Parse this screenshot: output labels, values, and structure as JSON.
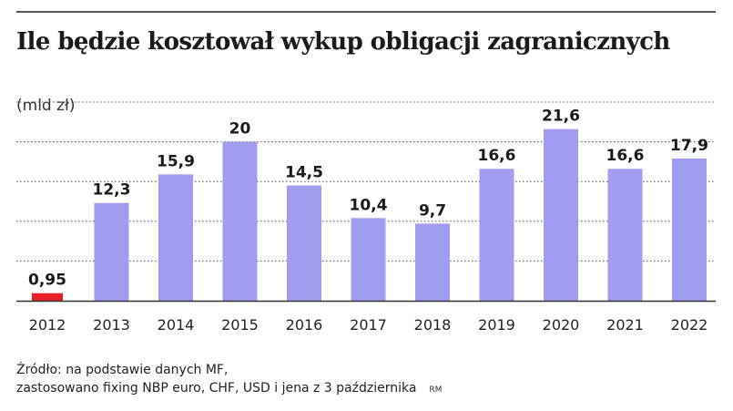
{
  "header": {
    "title": "Ile będzie kosztował wykup obligacji zagranicznych",
    "unit": "(mld zł)"
  },
  "chart_data": {
    "type": "bar",
    "title": "Ile będzie kosztował wykup obligacji zagranicznych",
    "ylabel": "(mld zł)",
    "categories": [
      "2012",
      "2013",
      "2014",
      "2015",
      "2016",
      "2017",
      "2018",
      "2019",
      "2020",
      "2021",
      "2022"
    ],
    "values": [
      0.95,
      12.3,
      15.9,
      20,
      14.5,
      10.4,
      9.7,
      16.6,
      21.6,
      16.6,
      17.9
    ],
    "value_labels": [
      "0,95",
      "12,3",
      "15,9",
      "20",
      "14,5",
      "10,4",
      "9,7",
      "16,6",
      "21,6",
      "16,6",
      "17,9"
    ],
    "ylim": [
      0,
      25
    ],
    "grid": true,
    "colors": {
      "bar": "#a09cf0",
      "highlight": "#e82027",
      "grid": "#555555",
      "axis": "#333333"
    },
    "highlight_index": 0
  },
  "footer": {
    "source_line1": "Źródło: na podstawie danych MF,",
    "source_line2": "zastosowano fixing NBP euro, CHF, USD i jena z 3 października",
    "credit": "RM"
  }
}
